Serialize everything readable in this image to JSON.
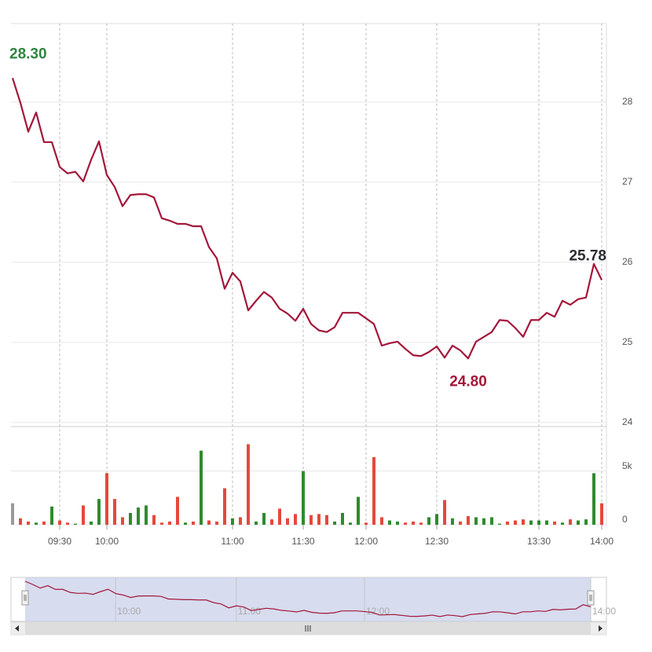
{
  "chart_data": {
    "type": "line",
    "color": "#a3173a",
    "categories": [
      null,
      null,
      null,
      null,
      null,
      null,
      "09:30",
      null,
      null,
      null,
      null,
      null,
      "10:00",
      null,
      null,
      null,
      null,
      null,
      null,
      null,
      null,
      null,
      null,
      null,
      null,
      null,
      null,
      null,
      "11:00",
      null,
      null,
      null,
      null,
      null,
      null,
      null,
      null,
      "11:30",
      null,
      null,
      null,
      null,
      null,
      null,
      null,
      "12:00",
      null,
      null,
      null,
      null,
      null,
      null,
      null,
      null,
      "12:30",
      null,
      null,
      null,
      null,
      null,
      null,
      null,
      null,
      null,
      null,
      null,
      null,
      "13:30",
      null,
      null,
      null,
      null,
      null,
      null,
      null,
      "14:00"
    ],
    "values": [
      28.3,
      27.99,
      27.63,
      27.87,
      27.5,
      27.5,
      27.19,
      27.11,
      27.13,
      27.01,
      27.28,
      27.51,
      27.09,
      26.94,
      26.7,
      26.84,
      26.85,
      26.85,
      26.81,
      26.55,
      26.52,
      26.48,
      26.48,
      26.45,
      26.45,
      26.19,
      26.05,
      25.67,
      25.87,
      25.76,
      25.4,
      25.52,
      25.63,
      25.56,
      25.42,
      25.36,
      25.27,
      25.42,
      25.23,
      25.15,
      25.13,
      25.19,
      25.37,
      25.37,
      25.37,
      25.3,
      25.23,
      24.96,
      24.99,
      25.01,
      24.92,
      24.84,
      24.83,
      24.88,
      24.95,
      24.81,
      24.96,
      24.9,
      24.8,
      25.01,
      25.07,
      25.13,
      25.28,
      25.27,
      25.18,
      25.07,
      25.28,
      25.28,
      25.37,
      25.32,
      25.52,
      25.47,
      25.54,
      25.56,
      25.98,
      25.78
    ],
    "ylim": [
      23.95,
      28.98
    ],
    "yticks": [
      24,
      25,
      26,
      27,
      28
    ],
    "grid": true,
    "annotations": [
      {
        "label": "28.30",
        "value": 28.3,
        "at": 0,
        "position": "above",
        "color": "#2e8540"
      },
      {
        "label": "25.78",
        "value": 25.78,
        "at": 75,
        "position": "above",
        "color": "#2b2b33"
      },
      {
        "label": "24.80",
        "value": 24.8,
        "at": 58,
        "position": "below",
        "color": "#a3173a"
      }
    ],
    "volume": {
      "type": "bar",
      "values": [
        2000,
        600,
        300,
        200,
        300,
        1700,
        400,
        200,
        100,
        1800,
        300,
        2400,
        4800,
        2400,
        700,
        1100,
        1600,
        1800,
        900,
        200,
        300,
        2600,
        200,
        300,
        6900,
        400,
        300,
        3400,
        600,
        700,
        7500,
        300,
        1100,
        500,
        1500,
        600,
        1000,
        5000,
        900,
        1000,
        900,
        300,
        1100,
        200,
        2600,
        200,
        6300,
        700,
        400,
        300,
        200,
        300,
        200,
        700,
        1000,
        2300,
        600,
        300,
        800,
        700,
        600,
        700,
        100,
        300,
        400,
        500,
        400,
        400,
        400,
        300,
        200,
        500,
        400,
        500,
        4800,
        2000
      ],
      "ylim": [
        0,
        9000
      ],
      "yticks": [
        0,
        {
          "value": 5000,
          "label": "5k"
        }
      ],
      "up_color": "#2e8b2e",
      "down_color": "#e5483d",
      "flat_color": "#999999"
    }
  }
}
